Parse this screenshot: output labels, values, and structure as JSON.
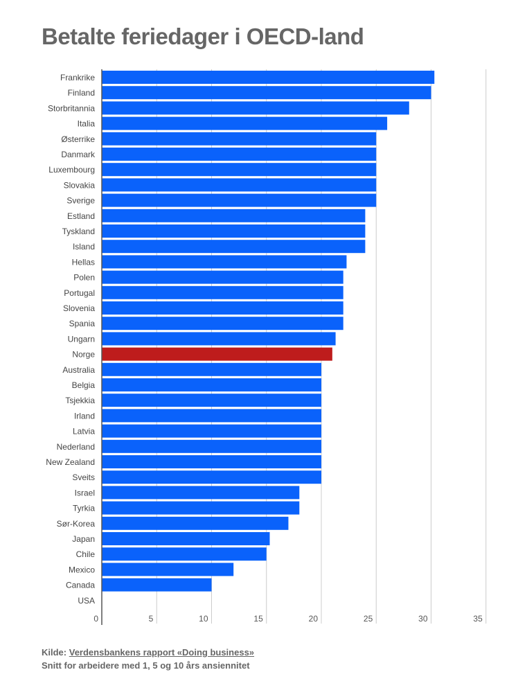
{
  "title": "Betalte feriedager i OECD-land",
  "chart_data": {
    "type": "bar",
    "orientation": "horizontal",
    "title": "Betalte feriedager i OECD-land",
    "categories": [
      "Frankrike",
      "Finland",
      "Storbritannia",
      "Italia",
      "Østerrike",
      "Danmark",
      "Luxembourg",
      "Slovakia",
      "Sverige",
      "Estland",
      "Tyskland",
      "Island",
      "Hellas",
      "Polen",
      "Portugal",
      "Slovenia",
      "Spania",
      "Ungarn",
      "Norge",
      "Australia",
      "Belgia",
      "Tsjekkia",
      "Irland",
      "Latvia",
      "Nederland",
      "New Zealand",
      "Sveits",
      "Israel",
      "Tyrkia",
      "Sør-Korea",
      "Japan",
      "Chile",
      "Mexico",
      "Canada",
      "USA"
    ],
    "values": [
      30.3,
      30.0,
      28.0,
      26.0,
      25.0,
      25.0,
      25.0,
      25.0,
      25.0,
      24.0,
      24.0,
      24.0,
      22.3,
      22.0,
      22.0,
      22.0,
      22.0,
      21.3,
      21.0,
      20.0,
      20.0,
      20.0,
      20.0,
      20.0,
      20.0,
      20.0,
      20.0,
      18.0,
      18.0,
      17.0,
      15.3,
      15.0,
      12.0,
      10.0,
      0
    ],
    "highlight": "Norge",
    "xlim": [
      0,
      35
    ],
    "xticks": [
      "0",
      "5",
      "10",
      "15",
      "20",
      "25",
      "30",
      "35"
    ],
    "grid": true,
    "colors": {
      "bar": "#0a62fb",
      "highlight": "#be1c1c",
      "grid": "#cccccc",
      "axis": "#555555"
    }
  },
  "footer": {
    "source_prefix": "Kilde: ",
    "source_link": "Verdensbankens rapport «Doing business»",
    "note": "Snitt for arbeidere med 1, 5 og 10 års ansiennitet"
  }
}
